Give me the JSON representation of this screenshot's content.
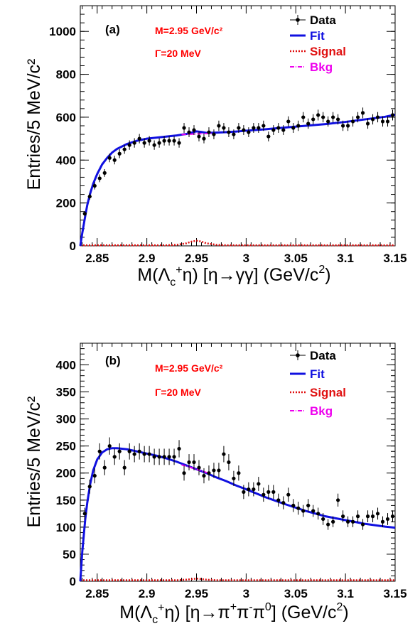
{
  "colors": {
    "data": "#000000",
    "fit": "#1010e0",
    "signal": "#e01010",
    "bkg": "#ee00ee",
    "annotation": "#ff0000"
  },
  "chart_data": [
    {
      "type": "line",
      "panel_label": "(a)",
      "ylabel": "Entries/5 MeV/c²",
      "xlabel_parts": [
        "M(Λ",
        "c",
        "+",
        "η) [η→γγ] (GeV/c",
        "2",
        ")"
      ],
      "annotations": [
        "M=2.95 GeV/c²",
        "Γ=20 MeV"
      ],
      "legend": [
        "Data",
        "Fit",
        "Signal",
        "Bkg"
      ],
      "legend_position": "top-right",
      "xlim": [
        2.833,
        3.15
      ],
      "ylim": [
        0,
        1120
      ],
      "xticks": [
        2.85,
        2.9,
        2.95,
        3.0,
        3.05,
        3.1,
        3.15
      ],
      "xtick_labels": [
        "2.85",
        "2.9",
        "2.95",
        "3",
        "3.05",
        "3.1",
        "3.15"
      ],
      "yticks": [
        0,
        200,
        400,
        600,
        800,
        1000
      ],
      "ytick_labels": [
        "0",
        "200",
        "400",
        "600",
        "800",
        "1000"
      ],
      "data": {
        "x": [
          2.8375,
          2.8425,
          2.8475,
          2.8525,
          2.8575,
          2.8625,
          2.8675,
          2.8725,
          2.8775,
          2.8825,
          2.8875,
          2.8925,
          2.8975,
          2.9025,
          2.9075,
          2.9125,
          2.9175,
          2.9225,
          2.9275,
          2.9325,
          2.9375,
          2.9425,
          2.9475,
          2.9525,
          2.9575,
          2.9625,
          2.9675,
          2.9725,
          2.9775,
          2.9825,
          2.9875,
          2.9925,
          2.9975,
          3.0025,
          3.0075,
          3.0125,
          3.0175,
          3.0225,
          3.0275,
          3.0325,
          3.0375,
          3.0425,
          3.0475,
          3.0525,
          3.0575,
          3.0625,
          3.0675,
          3.0725,
          3.0775,
          3.0825,
          3.0875,
          3.0925,
          3.0975,
          3.1025,
          3.1075,
          3.1125,
          3.1175,
          3.1225,
          3.1275,
          3.1325,
          3.1375,
          3.1425,
          3.1475
        ],
        "y": [
          150,
          230,
          280,
          315,
          340,
          410,
          400,
          430,
          450,
          470,
          480,
          500,
          480,
          490,
          470,
          480,
          490,
          490,
          490,
          480,
          550,
          530,
          540,
          510,
          500,
          530,
          520,
          560,
          550,
          530,
          520,
          550,
          540,
          530,
          550,
          550,
          560,
          510,
          540,
          550,
          540,
          580,
          550,
          560,
          600,
          570,
          590,
          610,
          600,
          580,
          600,
          590,
          560,
          560,
          580,
          600,
          620,
          570,
          590,
          600,
          580,
          580,
          610
        ],
        "err": [
          12,
          15,
          17,
          18,
          18,
          20,
          20,
          21,
          21,
          22,
          22,
          22,
          22,
          22,
          22,
          22,
          22,
          22,
          22,
          22,
          23,
          23,
          23,
          23,
          22,
          23,
          23,
          24,
          23,
          23,
          23,
          23,
          23,
          23,
          23,
          23,
          24,
          23,
          23,
          23,
          23,
          24,
          23,
          24,
          24,
          24,
          24,
          25,
          24,
          24,
          24,
          24,
          24,
          24,
          24,
          24,
          25,
          24,
          24,
          24,
          24,
          24,
          25
        ]
      },
      "fit": {
        "x": [
          2.833,
          2.835,
          2.838,
          2.84,
          2.843,
          2.846,
          2.85,
          2.855,
          2.86,
          2.865,
          2.87,
          2.88,
          2.89,
          2.9,
          2.91,
          2.92,
          2.93,
          2.94,
          2.945,
          2.95,
          2.955,
          2.96,
          2.97,
          2.98,
          2.99,
          3.0,
          3.02,
          3.04,
          3.06,
          3.08,
          3.1,
          3.12,
          3.14,
          3.15
        ],
        "y": [
          0,
          60,
          140,
          190,
          245,
          290,
          335,
          380,
          410,
          435,
          452,
          475,
          490,
          500,
          505,
          510,
          515,
          522,
          528,
          534,
          531,
          527,
          528,
          530,
          533,
          537,
          544,
          552,
          560,
          568,
          578,
          590,
          602,
          612
        ]
      },
      "bkg": {
        "x": [
          2.935,
          2.94,
          2.945,
          2.95,
          2.955,
          2.96,
          2.965
        ],
        "y": [
          519,
          520,
          521,
          522,
          523,
          524,
          525
        ]
      },
      "signal": {
        "x": [
          2.833,
          2.92,
          2.93,
          2.94,
          2.945,
          2.95,
          2.955,
          2.96,
          2.97,
          2.98,
          3.15
        ],
        "y": [
          3,
          3,
          5,
          12,
          20,
          24,
          20,
          12,
          5,
          3,
          3
        ]
      }
    },
    {
      "type": "line",
      "panel_label": "(b)",
      "ylabel": "Entries/5 MeV/c²",
      "xlabel_parts": [
        "M(Λ",
        "c",
        "+",
        "η) [η→π",
        "+",
        "π",
        "-",
        "π",
        "0",
        "]  (GeV/c",
        "2",
        ")"
      ],
      "annotations": [
        "M=2.95 GeV/c²",
        "Γ=20 MeV"
      ],
      "legend": [
        "Data",
        "Fit",
        "Signal",
        "Bkg"
      ],
      "legend_position": "top-right",
      "xlim": [
        2.833,
        3.15
      ],
      "ylim": [
        0,
        440
      ],
      "xticks": [
        2.85,
        2.9,
        2.95,
        3.0,
        3.05,
        3.1,
        3.15
      ],
      "xtick_labels": [
        "2.85",
        "2.9",
        "2.95",
        "3",
        "3.05",
        "3.1",
        "3.15"
      ],
      "yticks": [
        0,
        50,
        100,
        150,
        200,
        250,
        300,
        350,
        400
      ],
      "ytick_labels": [
        "0",
        "50",
        "100",
        "150",
        "200",
        "250",
        "300",
        "350",
        "400"
      ],
      "data": {
        "x": [
          2.8375,
          2.8425,
          2.8475,
          2.8525,
          2.8575,
          2.8625,
          2.8675,
          2.8725,
          2.8775,
          2.8825,
          2.8875,
          2.8925,
          2.8975,
          2.9025,
          2.9075,
          2.9125,
          2.9175,
          2.9225,
          2.9275,
          2.9325,
          2.9375,
          2.9425,
          2.9475,
          2.9525,
          2.9575,
          2.9625,
          2.9675,
          2.9725,
          2.9775,
          2.9825,
          2.9875,
          2.9925,
          2.9975,
          3.0025,
          3.0075,
          3.0125,
          3.0175,
          3.0225,
          3.0275,
          3.0325,
          3.0375,
          3.0425,
          3.0475,
          3.0525,
          3.0575,
          3.0625,
          3.0675,
          3.0725,
          3.0775,
          3.0825,
          3.0875,
          3.0925,
          3.0975,
          3.1025,
          3.1075,
          3.1125,
          3.1175,
          3.1225,
          3.1275,
          3.1325,
          3.1375,
          3.1425,
          3.1475
        ],
        "y": [
          125,
          175,
          195,
          240,
          210,
          250,
          230,
          240,
          210,
          240,
          235,
          240,
          235,
          235,
          230,
          230,
          230,
          230,
          230,
          245,
          200,
          220,
          220,
          210,
          195,
          200,
          205,
          205,
          235,
          220,
          190,
          200,
          165,
          170,
          170,
          180,
          160,
          165,
          165,
          150,
          145,
          160,
          140,
          135,
          130,
          140,
          130,
          125,
          115,
          105,
          110,
          150,
          120,
          110,
          110,
          120,
          105,
          120,
          120,
          125,
          110,
          115,
          120
        ],
        "err": [
          11,
          13,
          14,
          15,
          14,
          16,
          15,
          15,
          14,
          15,
          15,
          15,
          15,
          15,
          15,
          15,
          15,
          15,
          15,
          16,
          14,
          15,
          15,
          14,
          14,
          14,
          14,
          14,
          15,
          15,
          14,
          14,
          13,
          13,
          13,
          13,
          13,
          13,
          13,
          12,
          12,
          13,
          12,
          12,
          11,
          12,
          11,
          11,
          11,
          10,
          10,
          12,
          11,
          10,
          10,
          11,
          10,
          11,
          11,
          11,
          10,
          11,
          11
        ]
      },
      "fit": {
        "x": [
          2.833,
          2.835,
          2.838,
          2.84,
          2.843,
          2.846,
          2.85,
          2.855,
          2.86,
          2.865,
          2.87,
          2.875,
          2.88,
          2.89,
          2.9,
          2.91,
          2.92,
          2.93,
          2.94,
          2.95,
          2.96,
          2.97,
          2.98,
          2.99,
          3.0,
          3.02,
          3.04,
          3.06,
          3.08,
          3.1,
          3.12,
          3.14,
          3.15
        ],
        "y": [
          0,
          55,
          115,
          145,
          180,
          205,
          225,
          238,
          244,
          246,
          246,
          245,
          244,
          240,
          236,
          232,
          227,
          221,
          214,
          207,
          200,
          192,
          185,
          177,
          170,
          155,
          142,
          130,
          120,
          113,
          106,
          101,
          99
        ]
      },
      "bkg": {
        "x": [
          2.935,
          2.94,
          2.945,
          2.95,
          2.955,
          2.96,
          2.965
        ],
        "y": [
          215,
          213,
          210,
          207,
          204,
          201,
          198
        ]
      },
      "signal": {
        "x": [
          2.833,
          2.93,
          2.94,
          2.945,
          2.95,
          2.955,
          2.96,
          2.97,
          3.15
        ],
        "y": [
          2,
          2,
          3,
          4,
          5,
          4,
          3,
          2,
          2
        ]
      }
    }
  ]
}
